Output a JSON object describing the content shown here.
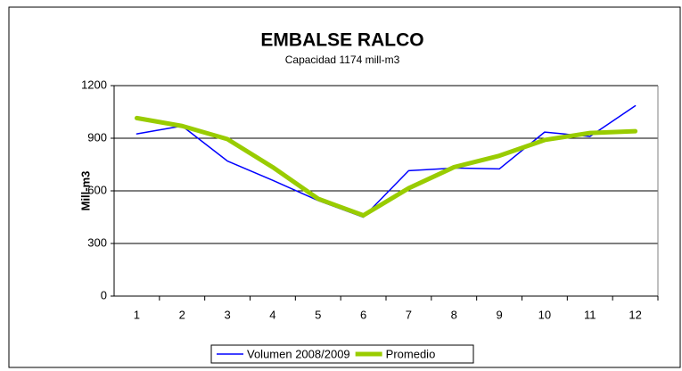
{
  "chart_data": {
    "type": "line",
    "title": "EMBALSE RALCO",
    "subtitle": "Capacidad  1174 mill-m3",
    "y_label": "Mill-m3",
    "categories": [
      "1",
      "2",
      "3",
      "4",
      "5",
      "6",
      "7",
      "8",
      "9",
      "10",
      "11",
      "12"
    ],
    "series": [
      {
        "name": "Volumen  2008/2009",
        "color": "#0000ff",
        "width": 1.5,
        "values": [
          925,
          970,
          770,
          660,
          545,
          450,
          715,
          730,
          725,
          935,
          910,
          1085
        ]
      },
      {
        "name": "Promedio",
        "color": "#99cc00",
        "width": 5,
        "values": [
          1015,
          970,
          895,
          735,
          555,
          460,
          615,
          735,
          800,
          890,
          930,
          940
        ]
      }
    ],
    "ylim": [
      0,
      1200
    ],
    "yticks": [
      0,
      300,
      600,
      900,
      1200
    ],
    "grid": true,
    "legend": "bottom"
  }
}
